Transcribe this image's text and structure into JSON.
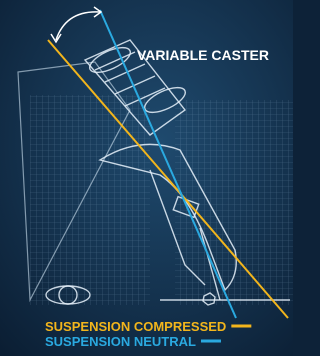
{
  "title": "VARIABLE CASTER",
  "legend": [
    {
      "label": "SUSPENSION COMPRESSED",
      "color": "#f2b51c"
    },
    {
      "label": "SUSPENSION NEUTRAL",
      "color": "#2aa9e0"
    }
  ]
}
